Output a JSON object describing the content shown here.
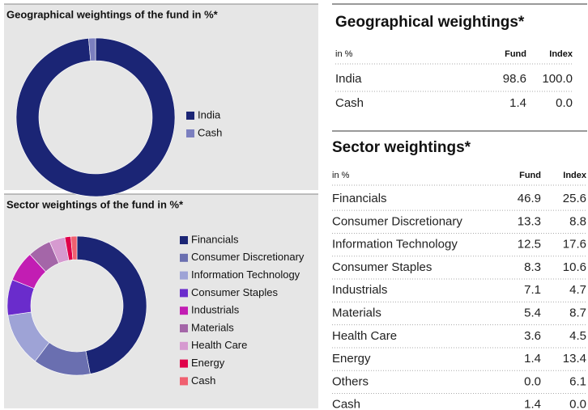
{
  "chart_data": [
    {
      "type": "donut",
      "title": "Geographical weightings of the fund in %*",
      "categories": [
        "India",
        "Cash"
      ],
      "values": [
        98.6,
        1.4
      ],
      "colors": [
        "#1b2575",
        "#7b7fbf"
      ]
    },
    {
      "type": "donut",
      "title": "Sector weightings of the fund in %*",
      "categories": [
        "Financials",
        "Consumer Discretionary",
        "Information Technology",
        "Consumer Staples",
        "Industrials",
        "Materials",
        "Health Care",
        "Energy",
        "Cash"
      ],
      "values": [
        46.9,
        13.3,
        12.5,
        8.3,
        7.1,
        5.4,
        3.6,
        1.4,
        1.4
      ],
      "colors": [
        "#1b2575",
        "#6a6fb0",
        "#9ea3d6",
        "#6a2ccc",
        "#c21db3",
        "#a466a8",
        "#d69ad0",
        "#e0004a",
        "#f06070"
      ]
    }
  ],
  "tables": [
    {
      "title": "Geographical weightings*",
      "headers": [
        "in %",
        "Fund",
        "Index"
      ],
      "rows": [
        [
          "India",
          "98.6",
          "100.0"
        ],
        [
          "Cash",
          "1.4",
          "0.0"
        ]
      ]
    },
    {
      "title": "Sector weightings*",
      "headers": [
        "in %",
        "Fund",
        "Index"
      ],
      "rows": [
        [
          "Financials",
          "46.9",
          "25.6"
        ],
        [
          "Consumer Discretionary",
          "13.3",
          "8.8"
        ],
        [
          "Information Technology",
          "12.5",
          "17.6"
        ],
        [
          "Consumer Staples",
          "8.3",
          "10.6"
        ],
        [
          "Industrials",
          "7.1",
          "4.7"
        ],
        [
          "Materials",
          "5.4",
          "8.7"
        ],
        [
          "Health Care",
          "3.6",
          "4.5"
        ],
        [
          "Energy",
          "1.4",
          "13.4"
        ],
        [
          "Others",
          "0.0",
          "6.1"
        ],
        [
          "Cash",
          "1.4",
          "0.0"
        ]
      ]
    }
  ]
}
